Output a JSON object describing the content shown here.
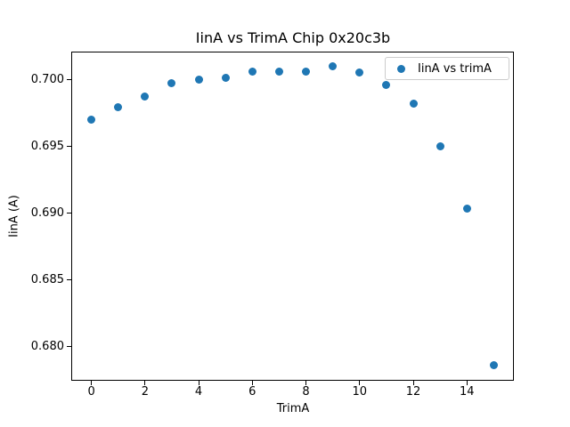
{
  "title": "IinA vs TrimA Chip 0x20c3b",
  "chart_data": {
    "type": "scatter",
    "title": "IinA vs TrimA Chip 0x20c3b",
    "xlabel": "TrimA",
    "ylabel": "IinA (A)",
    "legend_label": "IinA vs trimA",
    "legend_position": "upper right",
    "grid": false,
    "marker_color": "#1f77b4",
    "x": [
      0,
      1,
      2,
      3,
      4,
      5,
      6,
      7,
      8,
      9,
      10,
      11,
      12,
      13,
      14,
      15
    ],
    "y": [
      0.697,
      0.6979,
      0.6987,
      0.6997,
      0.7,
      0.7001,
      0.7006,
      0.7006,
      0.7006,
      0.701,
      0.7005,
      0.6996,
      0.6982,
      0.695,
      0.6903,
      0.6786
    ],
    "xlim": [
      -0.75,
      15.75
    ],
    "ylim": [
      0.6774,
      0.7021
    ],
    "xticks": [
      0,
      2,
      4,
      6,
      8,
      10,
      12,
      14
    ],
    "xtick_labels": [
      "0",
      "2",
      "4",
      "6",
      "8",
      "10",
      "12",
      "14"
    ],
    "yticks": [
      0.68,
      0.685,
      0.69,
      0.695,
      0.7
    ],
    "ytick_labels": [
      "0.680",
      "0.685",
      "0.690",
      "0.695",
      "0.700"
    ]
  }
}
